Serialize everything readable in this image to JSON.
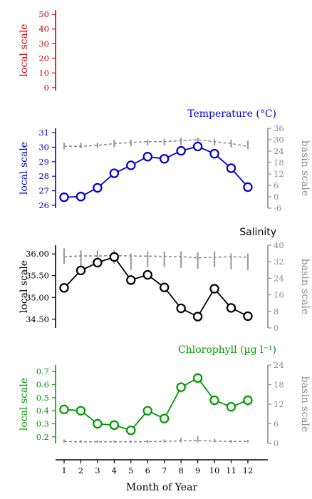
{
  "chart_data": [
    {
      "type": "line",
      "title": "",
      "ylabel": "local scale",
      "y2label": "",
      "color": "#cc0000",
      "ylim": [
        -2,
        53
      ],
      "yticks": [
        0,
        10,
        20,
        30,
        40,
        50
      ],
      "yticklabels": [
        "0",
        "10",
        "20",
        "30",
        "40",
        "50"
      ],
      "x": [
        1,
        2,
        3,
        4,
        5,
        6,
        7,
        8,
        9,
        10,
        11,
        12
      ],
      "series": []
    },
    {
      "type": "line",
      "title": "Temperature (°C)",
      "ylabel": "local scale",
      "y2label": "basin scale",
      "color": "#0000cc",
      "ylim": [
        25.8,
        31.3
      ],
      "yticks": [
        26,
        27,
        28,
        29,
        30,
        31
      ],
      "yticklabels": [
        "26",
        "27",
        "28",
        "29",
        "30",
        "31"
      ],
      "y2lim": [
        -6,
        36
      ],
      "y2ticks": [
        -6,
        0,
        6,
        12,
        18,
        24,
        30,
        36
      ],
      "y2ticklabels": [
        "-6",
        "0",
        "6",
        "12",
        "18",
        "24",
        "30",
        "36"
      ],
      "x": [
        1,
        2,
        3,
        4,
        5,
        6,
        7,
        8,
        9,
        10,
        11,
        12
      ],
      "local_values": [
        26.55,
        26.6,
        27.2,
        28.2,
        28.75,
        29.35,
        29.2,
        29.75,
        30.05,
        29.55,
        28.55,
        27.25
      ],
      "basin_values": [
        26.5,
        26.5,
        27.0,
        28.0,
        28.5,
        29.0,
        29.0,
        29.5,
        30.0,
        29.0,
        28.0,
        26.5
      ],
      "basin_whiskers": [
        [
          25,
          28.5
        ],
        [
          25.5,
          28.5
        ],
        [
          25.5,
          28.5
        ],
        [
          26,
          30
        ],
        [
          26.5,
          30
        ],
        [
          27,
          30
        ],
        [
          27,
          30.5
        ],
        [
          27,
          31
        ],
        [
          27.5,
          31
        ],
        [
          27,
          30.5
        ],
        [
          26,
          30
        ],
        [
          25,
          29.5
        ]
      ]
    },
    {
      "type": "line",
      "title": "Salinity",
      "ylabel": "local scale",
      "y2label": "basin scale",
      "color": "#000000",
      "ylim": [
        34.3,
        36.2
      ],
      "yticks": [
        34.5,
        35.0,
        35.5,
        36.0
      ],
      "yticklabels": [
        "34.50",
        "35.00",
        "35.50",
        "36.00"
      ],
      "y2lim": [
        0,
        40
      ],
      "y2ticks": [
        0,
        8,
        16,
        24,
        32,
        40
      ],
      "y2ticklabels": [
        "0",
        "8",
        "16",
        "24",
        "32",
        "40"
      ],
      "x": [
        1,
        2,
        3,
        4,
        5,
        6,
        7,
        8,
        9,
        10,
        11,
        12
      ],
      "local_values": [
        35.22,
        35.62,
        35.8,
        35.93,
        35.4,
        35.52,
        35.23,
        34.75,
        34.56,
        35.2,
        34.76,
        34.57
      ],
      "basin_values": [
        34.5,
        34.8,
        34.8,
        35.0,
        34.8,
        34.7,
        34.6,
        34.5,
        33.9,
        34.2,
        34.4,
        34.2
      ],
      "basin_whiskers": [
        [
          31,
          38.5
        ],
        [
          30,
          37.5
        ],
        [
          31.5,
          37.5
        ],
        [
          31,
          37.5
        ],
        [
          28,
          36
        ],
        [
          29.5,
          37
        ],
        [
          29.5,
          37
        ],
        [
          29,
          37
        ],
        [
          28.5,
          36.5
        ],
        [
          29.5,
          37
        ],
        [
          28.5,
          36
        ],
        [
          28,
          36
        ]
      ]
    },
    {
      "type": "line",
      "title": "Chlorophyll (µg l⁻¹)",
      "ylabel": "local scale",
      "y2label": "basin scale",
      "color": "#009900",
      "ylim": [
        0.15,
        0.75
      ],
      "yticks": [
        0.2,
        0.3,
        0.4,
        0.5,
        0.6,
        0.7
      ],
      "yticklabels": [
        "0.2",
        "0.3",
        "0.4",
        "0.5",
        "0.6",
        "0.7"
      ],
      "y2lim": [
        0,
        24
      ],
      "y2ticks": [
        0,
        6,
        12,
        18,
        24
      ],
      "y2ticklabels": [
        "0",
        "6",
        "12",
        "18",
        "24"
      ],
      "x": [
        1,
        2,
        3,
        4,
        5,
        6,
        7,
        8,
        9,
        10,
        11,
        12
      ],
      "local_values": [
        0.41,
        0.4,
        0.3,
        0.29,
        0.25,
        0.4,
        0.34,
        0.58,
        0.65,
        0.48,
        0.43,
        0.48
      ],
      "basin_values": [
        0.6,
        0.5,
        0.5,
        0.5,
        0.5,
        0.55,
        0.6,
        0.8,
        0.85,
        0.7,
        0.6,
        0.6
      ],
      "basin_whiskers": [
        [
          0.2,
          1.2
        ],
        [
          0.2,
          1.0
        ],
        [
          0.2,
          0.9
        ],
        [
          0.2,
          0.9
        ],
        [
          0.2,
          0.9
        ],
        [
          0.2,
          1.1
        ],
        [
          0.2,
          1.2
        ],
        [
          0.3,
          1.8
        ],
        [
          0.3,
          2.2
        ],
        [
          0.3,
          1.4
        ],
        [
          0.2,
          1.1
        ],
        [
          0.2,
          1.1
        ]
      ]
    }
  ],
  "xaxis": {
    "label": "Month of Year",
    "ticks": [
      1,
      2,
      3,
      4,
      5,
      6,
      7,
      8,
      9,
      10,
      11,
      12
    ],
    "ticklabels": [
      "1",
      "2",
      "3",
      "4",
      "5",
      "6",
      "7",
      "8",
      "9",
      "10",
      "11",
      "12"
    ]
  },
  "colors": {
    "basin": "#8c8c8c"
  }
}
